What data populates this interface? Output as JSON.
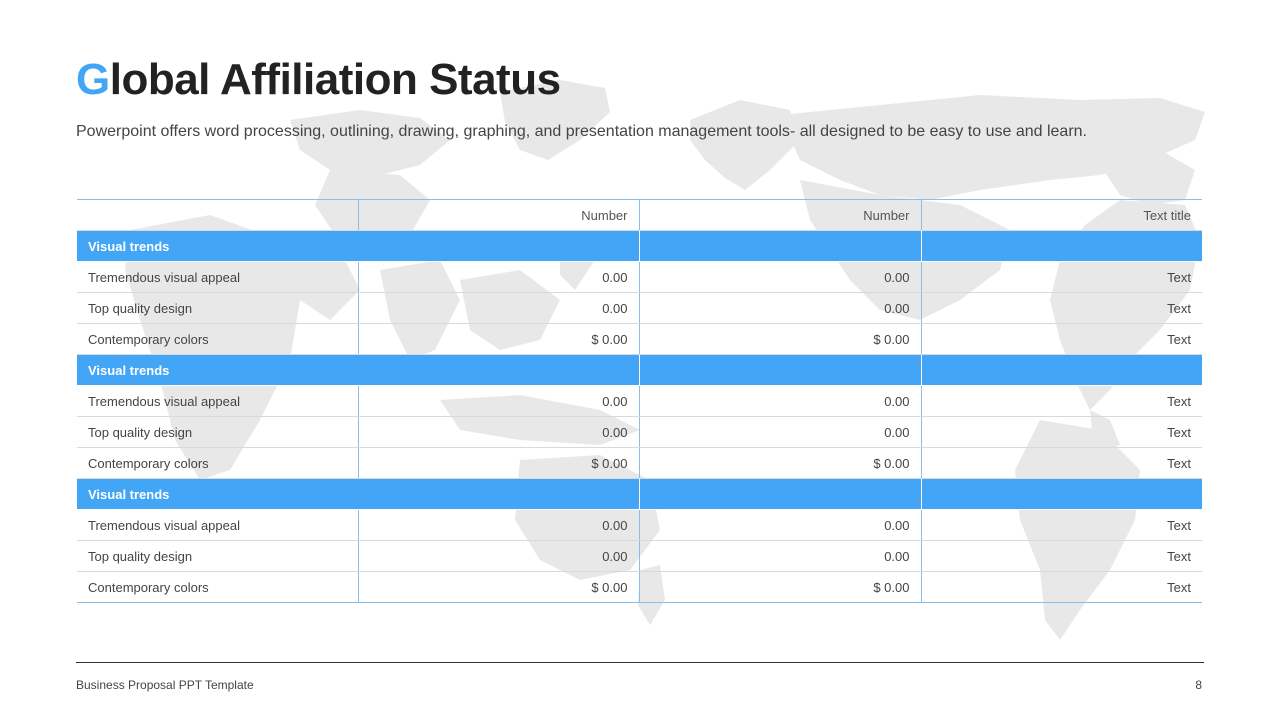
{
  "slide": {
    "title_accent": "G",
    "title_rest": "lobal Affiliation Status",
    "subtitle": "Powerpoint offers word processing, outlining, drawing, graphing, and presentation management tools- all designed to be easy to use and learn.",
    "background": "world-map-icon"
  },
  "table": {
    "headers": [
      "",
      "Number",
      "Number",
      "Text title"
    ],
    "groups": [
      {
        "label": "Visual trends",
        "rows": [
          {
            "label": "Tremendous visual appeal",
            "c1": "0.00",
            "c2": "0.00",
            "c3": "Text"
          },
          {
            "label": "Top quality design",
            "c1": "0.00",
            "c2": "0.00",
            "c3": "Text"
          },
          {
            "label": "Contemporary colors",
            "c1": "$ 0.00",
            "c2": "$ 0.00",
            "c3": "Text"
          }
        ]
      },
      {
        "label": "Visual trends",
        "rows": [
          {
            "label": "Tremendous visual appeal",
            "c1": "0.00",
            "c2": "0.00",
            "c3": "Text"
          },
          {
            "label": "Top quality design",
            "c1": "0.00",
            "c2": "0.00",
            "c3": "Text"
          },
          {
            "label": "Contemporary colors",
            "c1": "$ 0.00",
            "c2": "$ 0.00",
            "c3": "Text"
          }
        ]
      },
      {
        "label": "Visual trends",
        "rows": [
          {
            "label": "Tremendous visual appeal",
            "c1": "0.00",
            "c2": "0.00",
            "c3": "Text"
          },
          {
            "label": "Top quality design",
            "c1": "0.00",
            "c2": "0.00",
            "c3": "Text"
          },
          {
            "label": "Contemporary colors",
            "c1": "$ 0.00",
            "c2": "$ 0.00",
            "c3": "Text"
          }
        ]
      }
    ]
  },
  "footer": {
    "text": "Business Proposal PPT Template",
    "page": "8"
  },
  "colors": {
    "accent": "#42a5f5",
    "title": "#222222",
    "map": "#e6e6e6"
  }
}
